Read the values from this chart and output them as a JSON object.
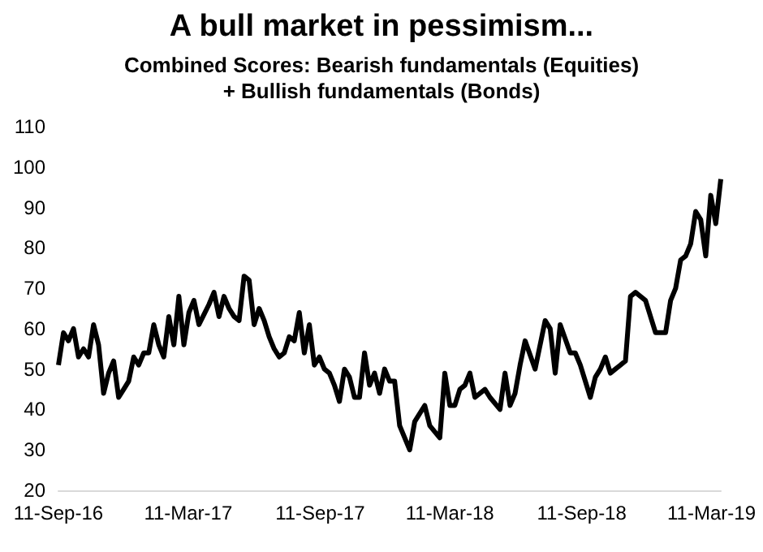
{
  "chart_data": {
    "type": "line",
    "title": "A bull market in pessimism...",
    "subtitle": "Combined Scores: Bearish fundamentals (Equities)\n+ Bullish fundamentals (Bonds)",
    "x": [
      "2016-09-11",
      "2016-09-18",
      "2016-09-25",
      "2016-10-02",
      "2016-10-09",
      "2016-10-16",
      "2016-10-23",
      "2016-10-30",
      "2016-11-06",
      "2016-11-13",
      "2016-11-20",
      "2016-11-27",
      "2016-12-04",
      "2016-12-11",
      "2016-12-18",
      "2016-12-25",
      "2017-01-01",
      "2017-01-08",
      "2017-01-15",
      "2017-01-22",
      "2017-01-29",
      "2017-02-05",
      "2017-02-12",
      "2017-02-19",
      "2017-02-26",
      "2017-03-05",
      "2017-03-12",
      "2017-03-19",
      "2017-03-26",
      "2017-04-09",
      "2017-04-16",
      "2017-04-23",
      "2017-04-30",
      "2017-05-07",
      "2017-05-14",
      "2017-05-21",
      "2017-05-28",
      "2017-06-04",
      "2017-06-11",
      "2017-06-18",
      "2017-06-25",
      "2017-07-02",
      "2017-07-09",
      "2017-07-16",
      "2017-07-23",
      "2017-07-30",
      "2017-08-06",
      "2017-08-13",
      "2017-08-20",
      "2017-08-27",
      "2017-09-03",
      "2017-09-10",
      "2017-09-17",
      "2017-09-24",
      "2017-10-01",
      "2017-10-08",
      "2017-10-15",
      "2017-10-22",
      "2017-10-29",
      "2017-11-05",
      "2017-11-12",
      "2017-11-19",
      "2017-11-26",
      "2017-12-03",
      "2017-12-10",
      "2017-12-17",
      "2017-12-24",
      "2017-12-31",
      "2018-01-14",
      "2018-01-21",
      "2018-02-04",
      "2018-02-11",
      "2018-02-25",
      "2018-03-04",
      "2018-03-11",
      "2018-03-18",
      "2018-03-25",
      "2018-04-01",
      "2018-04-08",
      "2018-04-15",
      "2018-04-29",
      "2018-05-06",
      "2018-05-20",
      "2018-05-27",
      "2018-06-03",
      "2018-06-10",
      "2018-06-17",
      "2018-06-24",
      "2018-07-08",
      "2018-07-22",
      "2018-07-29",
      "2018-08-05",
      "2018-08-12",
      "2018-08-26",
      "2018-09-02",
      "2018-09-09",
      "2018-09-23",
      "2018-09-30",
      "2018-10-07",
      "2018-10-14",
      "2018-10-21",
      "2018-10-28",
      "2018-11-11",
      "2018-11-18",
      "2018-11-25",
      "2018-12-02",
      "2018-12-09",
      "2018-12-23",
      "2019-01-06",
      "2019-01-13",
      "2019-01-20",
      "2019-01-27",
      "2019-02-03",
      "2019-02-10",
      "2019-02-17",
      "2019-02-24",
      "2019-03-03",
      "2019-03-10",
      "2019-03-17",
      "2019-03-24"
    ],
    "series": [
      {
        "color": "#000000",
        "values": [
          51,
          59,
          57,
          60,
          53,
          55,
          53,
          61,
          56,
          44,
          49,
          52,
          43,
          45,
          47,
          53,
          51,
          54,
          54,
          61,
          56,
          53,
          63,
          56,
          68,
          56,
          64,
          67,
          61,
          66,
          69,
          63,
          68,
          65,
          63,
          62,
          73,
          72,
          61,
          65,
          62,
          58,
          55,
          53,
          54,
          58,
          57,
          64,
          54,
          61,
          51,
          53,
          50,
          49,
          46,
          42,
          50,
          48,
          43,
          43,
          54,
          46,
          49,
          44,
          50,
          47,
          47,
          36,
          30,
          37,
          41,
          36,
          33,
          49,
          41,
          41,
          45,
          46,
          49,
          43,
          45,
          43,
          40,
          49,
          41,
          44,
          51,
          57,
          50,
          62,
          60,
          49,
          61,
          54,
          54,
          51,
          43,
          48,
          50,
          53,
          49,
          50,
          52,
          68,
          69,
          68,
          67,
          59,
          59,
          67,
          70,
          77,
          78,
          81,
          89,
          87,
          78,
          93,
          86,
          97
        ]
      }
    ],
    "xlim": [
      "2016-09-11",
      "2019-03-24"
    ],
    "xticks": [
      {
        "value": "2016-09-11",
        "label": "11-Sep-16"
      },
      {
        "value": "2017-03-11",
        "label": "11-Mar-17"
      },
      {
        "value": "2017-09-11",
        "label": "11-Sep-17"
      },
      {
        "value": "2018-03-11",
        "label": "11-Mar-18"
      },
      {
        "value": "2018-09-11",
        "label": "11-Sep-18"
      },
      {
        "value": "2019-03-11",
        "label": "11-Mar-19"
      }
    ],
    "ylim": [
      20,
      110
    ],
    "yticks": [
      20,
      30,
      40,
      50,
      60,
      70,
      80,
      90,
      100,
      110
    ],
    "grid": false,
    "marker": "none",
    "line_style": "solid"
  }
}
